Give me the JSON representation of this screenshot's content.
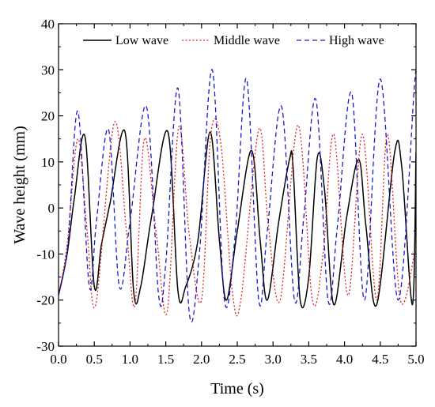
{
  "chart_data": {
    "type": "line",
    "xlabel": "Time (s)",
    "ylabel": "Wave height (mm)",
    "xlim": [
      0.0,
      5.0
    ],
    "ylim": [
      -30,
      40
    ],
    "x_ticks": [
      0.0,
      0.5,
      1.0,
      1.5,
      2.0,
      2.5,
      3.0,
      3.5,
      4.0,
      4.5,
      5.0
    ],
    "x_tick_labels": [
      "0.0",
      "0.5",
      "1.0",
      "1.5",
      "2.0",
      "2.5",
      "3.0",
      "3.5",
      "4.0",
      "4.5",
      "5.0"
    ],
    "y_ticks": [
      -30,
      -20,
      -10,
      0,
      10,
      20,
      30,
      40
    ],
    "y_tick_labels": [
      "-30",
      "-20",
      "-10",
      "0",
      "10",
      "20",
      "30",
      "40"
    ],
    "grid": false,
    "legend_position": "top",
    "series": [
      {
        "name": "Low wave",
        "color": "#000000",
        "dash": "solid",
        "x": [
          0.0,
          0.12,
          0.22,
          0.37,
          0.5,
          0.6,
          0.72,
          0.93,
          1.05,
          1.15,
          1.3,
          1.53,
          1.67,
          1.78,
          1.95,
          2.12,
          2.25,
          2.35,
          2.5,
          2.7,
          2.82,
          2.92,
          3.08,
          3.23,
          3.28,
          3.38,
          3.5,
          3.62,
          3.72,
          3.85,
          4.03,
          4.2,
          4.3,
          4.45,
          4.7,
          4.8,
          4.95,
          5.0
        ],
        "y": [
          -19,
          -10,
          2,
          15.5,
          -17,
          -8,
          1,
          16.5,
          -18,
          -17,
          -2,
          16.5,
          -18,
          -17,
          -7,
          16.5,
          -7,
          -20,
          -5,
          12.5,
          -7,
          -20,
          -3,
          10.5,
          9,
          -20,
          -15,
          11,
          4,
          -21,
          -2,
          10.5,
          -4,
          -21,
          12,
          9,
          -21,
          12
        ]
      },
      {
        "name": "Middle wave",
        "color": "#e02020",
        "dash": "dotted",
        "x": [
          0.0,
          0.12,
          0.27,
          0.4,
          0.52,
          0.78,
          0.95,
          1.07,
          1.2,
          1.37,
          1.52,
          1.68,
          1.83,
          2.0,
          2.13,
          2.27,
          2.43,
          2.55,
          2.8,
          2.93,
          3.1,
          3.35,
          3.55,
          3.7,
          3.85,
          4.05,
          4.25,
          4.45,
          4.6,
          4.78,
          4.98,
          5.0
        ],
        "y": [
          -19,
          -8,
          15,
          -5,
          -21,
          18.5,
          -5,
          -21,
          15,
          -6,
          -22.5,
          17.5,
          -6,
          -20,
          16,
          14,
          -18,
          -20,
          17,
          -3,
          -20,
          18,
          -20,
          -10,
          16,
          -19,
          16,
          -20,
          16,
          -20,
          -10,
          -10
        ]
      },
      {
        "name": "High wave",
        "color": "#1a1acc",
        "dash": "dashed",
        "x": [
          0.0,
          0.13,
          0.27,
          0.43,
          0.53,
          0.7,
          0.85,
          1.0,
          1.23,
          1.4,
          1.5,
          1.67,
          1.83,
          1.97,
          2.15,
          2.32,
          2.47,
          2.63,
          2.8,
          2.92,
          3.12,
          3.3,
          3.43,
          3.6,
          3.77,
          3.9,
          4.1,
          4.28,
          4.5,
          4.75,
          4.98,
          5.0
        ],
        "y": [
          -19,
          -8,
          21,
          -17,
          -3,
          17,
          -17,
          -3,
          22,
          -19,
          -12,
          26,
          -23,
          -10,
          30,
          -20,
          -6,
          28,
          -20,
          -5,
          22,
          -20,
          -2,
          23.5,
          -20,
          -4,
          25,
          -20,
          28,
          -20,
          27,
          25
        ]
      }
    ]
  }
}
